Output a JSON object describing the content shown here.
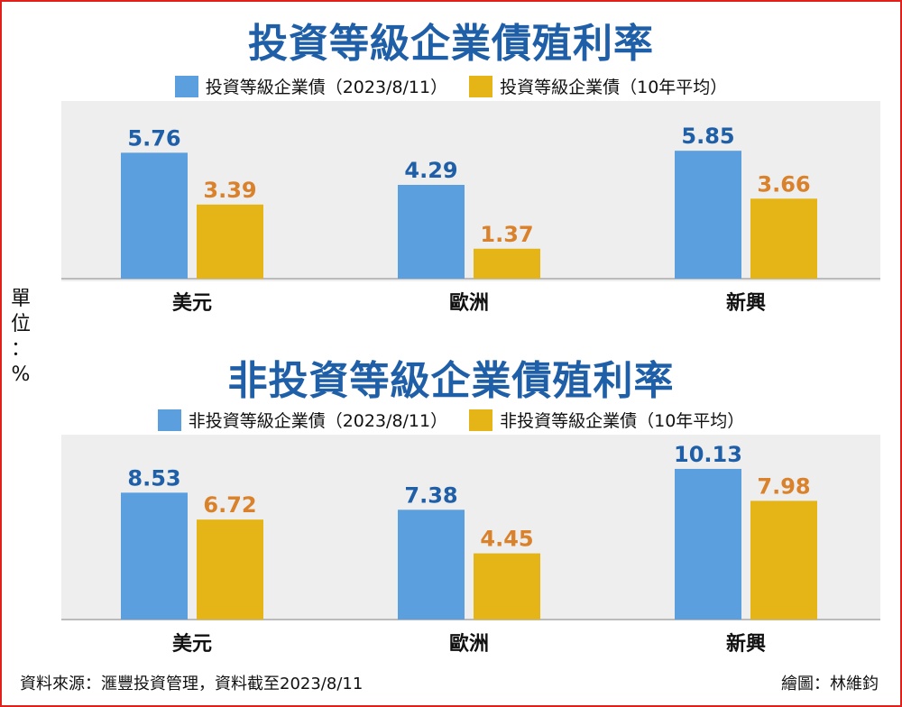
{
  "colors": {
    "series_current": "#5b9fde",
    "series_avg": "#e5b417",
    "label_current": "#1f5fa8",
    "label_avg": "#d9822b",
    "frame": "#e0211b",
    "title": "#1f5fa8"
  },
  "unit_label": [
    "單",
    "位",
    "：",
    "%"
  ],
  "footer": {
    "source": "資料來源：滙豐投資管理，資料截至2023/8/11",
    "credit": "繪圖：林維鈞"
  },
  "chart_data": [
    {
      "type": "bar",
      "title": "投資等級企業債殖利率",
      "categories": [
        "美元",
        "歐洲",
        "新興"
      ],
      "series": [
        {
          "name": "投資等級企業債（2023/8/11）",
          "values": [
            5.76,
            4.29,
            5.85
          ]
        },
        {
          "name": "投資等級企業債（10年平均）",
          "values": [
            3.39,
            1.37,
            3.66
          ]
        }
      ],
      "ylim": [
        0,
        6.6
      ],
      "legend_position": "top",
      "grid": false
    },
    {
      "type": "bar",
      "title": "非投資等級企業債殖利率",
      "categories": [
        "美元",
        "歐洲",
        "新興"
      ],
      "series": [
        {
          "name": "非投資等級企業債（2023/8/11）",
          "values": [
            8.53,
            7.38,
            10.13
          ]
        },
        {
          "name": "非投資等級企業債（10年平均）",
          "values": [
            6.72,
            4.45,
            7.98
          ]
        }
      ],
      "ylim": [
        0,
        11.4
      ],
      "legend_position": "top",
      "grid": false
    }
  ]
}
